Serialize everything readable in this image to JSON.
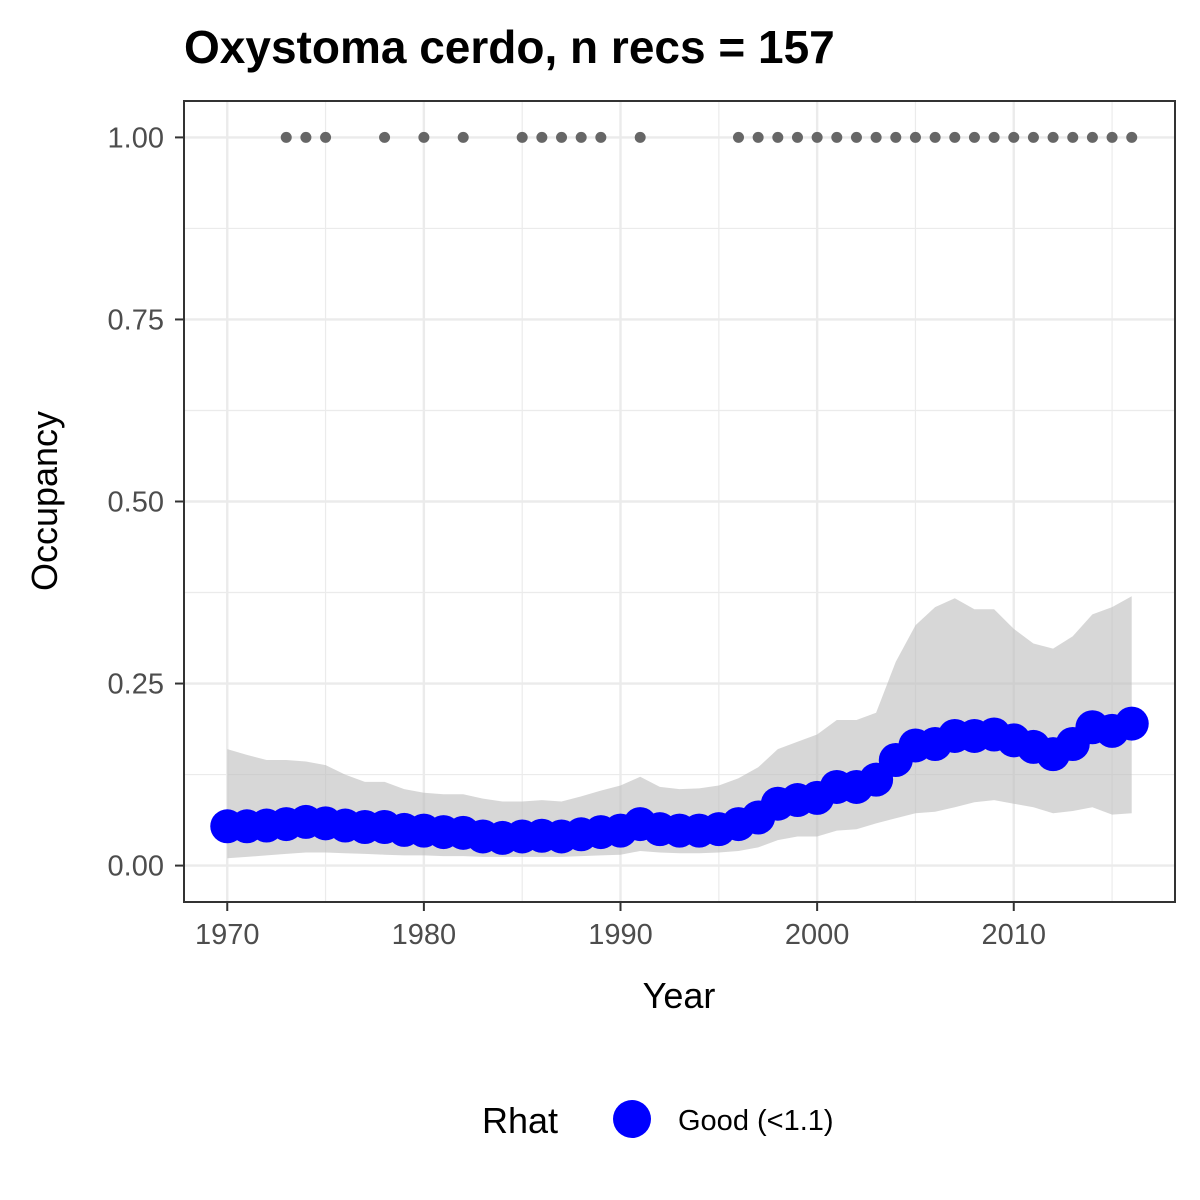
{
  "chart_data": {
    "type": "line",
    "title": "Oxystoma cerdo, n recs = 157",
    "xlabel": "Year",
    "ylabel": "Occupancy",
    "xlim": [
      1967.8,
      2018.2
    ],
    "ylim": [
      -0.05,
      1.05
    ],
    "x_ticks": [
      1970,
      1980,
      1990,
      2000,
      2010
    ],
    "x_tick_labels": [
      "1970",
      "1980",
      "1990",
      "2000",
      "2010"
    ],
    "y_ticks": [
      0,
      0.25,
      0.5,
      0.75,
      1.0
    ],
    "y_tick_labels": [
      "0.00",
      "0.25",
      "0.50",
      "0.75",
      "1.00"
    ],
    "grid": true,
    "colors": {
      "series": "#0000ff",
      "band": "#bebebe",
      "records": "#666666",
      "grid": "#ebebeb",
      "panel_border": "#333333"
    },
    "series": [
      {
        "x": [
          1970,
          1971,
          1972,
          1973,
          1974,
          1975,
          1976,
          1977,
          1978,
          1979,
          1980,
          1981,
          1982,
          1983,
          1984,
          1985,
          1986,
          1987,
          1988,
          1989,
          1990,
          1991,
          1992,
          1993,
          1994,
          1995,
          1996,
          1997,
          1998,
          1999,
          2000,
          2001,
          2002,
          2003,
          2004,
          2005,
          2006,
          2007,
          2008,
          2009,
          2010,
          2011,
          2012,
          2013,
          2014,
          2015,
          2016
        ],
        "values": [
          0.054,
          0.054,
          0.055,
          0.057,
          0.06,
          0.058,
          0.055,
          0.053,
          0.053,
          0.049,
          0.048,
          0.046,
          0.045,
          0.04,
          0.038,
          0.04,
          0.041,
          0.04,
          0.043,
          0.046,
          0.048,
          0.057,
          0.05,
          0.048,
          0.048,
          0.05,
          0.057,
          0.066,
          0.085,
          0.09,
          0.093,
          0.108,
          0.108,
          0.118,
          0.145,
          0.165,
          0.167,
          0.178,
          0.178,
          0.18,
          0.172,
          0.163,
          0.153,
          0.167,
          0.19,
          0.185,
          0.195
        ],
        "lower": [
          0.01,
          0.012,
          0.014,
          0.016,
          0.018,
          0.018,
          0.017,
          0.016,
          0.015,
          0.014,
          0.014,
          0.013,
          0.013,
          0.012,
          0.012,
          0.012,
          0.012,
          0.012,
          0.013,
          0.014,
          0.015,
          0.02,
          0.018,
          0.017,
          0.017,
          0.018,
          0.02,
          0.025,
          0.035,
          0.04,
          0.04,
          0.048,
          0.05,
          0.058,
          0.065,
          0.072,
          0.074,
          0.08,
          0.087,
          0.09,
          0.085,
          0.08,
          0.072,
          0.075,
          0.08,
          0.07,
          0.072
        ],
        "upper": [
          0.16,
          0.152,
          0.145,
          0.145,
          0.143,
          0.138,
          0.125,
          0.115,
          0.115,
          0.105,
          0.1,
          0.098,
          0.098,
          0.092,
          0.088,
          0.088,
          0.09,
          0.088,
          0.095,
          0.103,
          0.11,
          0.122,
          0.108,
          0.105,
          0.106,
          0.11,
          0.12,
          0.135,
          0.16,
          0.17,
          0.18,
          0.2,
          0.2,
          0.21,
          0.28,
          0.33,
          0.355,
          0.367,
          0.352,
          0.352,
          0.325,
          0.305,
          0.298,
          0.315,
          0.345,
          0.355,
          0.37
        ]
      }
    ],
    "records": {
      "y": 1.0,
      "x": [
        1973,
        1974,
        1975,
        1978,
        1980,
        1982,
        1985,
        1986,
        1987,
        1988,
        1989,
        1991,
        1996,
        1997,
        1998,
        1999,
        2000,
        2001,
        2002,
        2003,
        2004,
        2005,
        2006,
        2007,
        2008,
        2009,
        2010,
        2011,
        2012,
        2013,
        2014,
        2015,
        2016
      ]
    },
    "legend": {
      "title": "Rhat",
      "placement": "bottom",
      "entries": [
        {
          "label": "Good (<1.1)",
          "color": "#0000ff"
        }
      ]
    }
  }
}
